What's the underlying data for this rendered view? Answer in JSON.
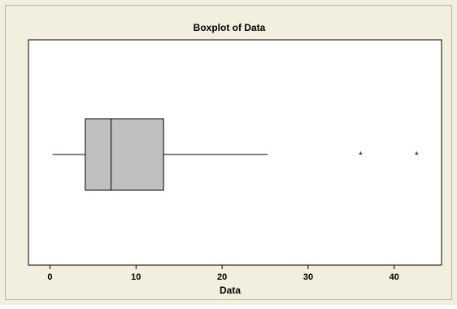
{
  "chart_data": {
    "type": "boxplot",
    "title": "Boxplot of Data",
    "xlabel": "Data",
    "ylabel": "",
    "xlim": [
      -2.5,
      45.5
    ],
    "ticks": [
      0,
      10,
      20,
      30,
      40
    ],
    "tick_labels": [
      "0",
      "10",
      "20",
      "30",
      "40"
    ],
    "grid": false,
    "orientation": "horizontal",
    "box": {
      "whisker_low": 0.3,
      "q1": 4.1,
      "median": 7.1,
      "q3": 13.2,
      "whisker_high": 25.3
    },
    "outliers": [
      36.1,
      42.6
    ],
    "outlier_marker": "*",
    "colors": {
      "outer_background": "#f3efde",
      "plot_background": "#ffffff",
      "box_fill": "#c0c0c0",
      "line": "#000000"
    }
  }
}
